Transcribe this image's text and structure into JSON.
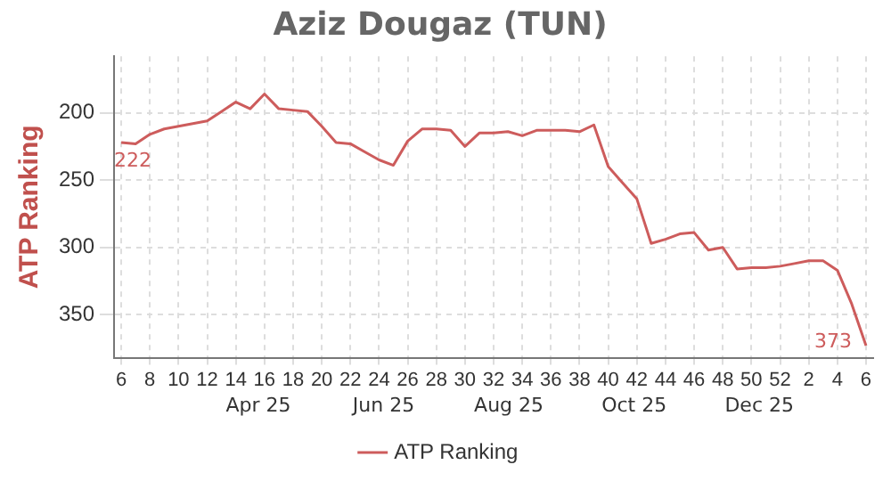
{
  "chart_data": {
    "type": "line",
    "title": "Aziz Dougaz (TUN)",
    "ylabel": "ATP Ranking",
    "categories": [
      "6",
      null,
      "8",
      null,
      "10",
      null,
      "12",
      null,
      "14",
      null,
      "16",
      null,
      "18",
      null,
      "20",
      null,
      "22",
      null,
      "24",
      null,
      "26",
      null,
      "28",
      null,
      "30",
      null,
      "32",
      null,
      "34",
      null,
      "36",
      null,
      "38",
      null,
      "40",
      null,
      "42",
      null,
      "44",
      null,
      "46",
      null,
      "48",
      null,
      "50",
      null,
      "52",
      null,
      "2",
      null,
      "4",
      null,
      "6"
    ],
    "series": [
      {
        "name": "ATP Ranking",
        "color": "#cd5c5c",
        "values": [
          222,
          223,
          216,
          212,
          210,
          208,
          206,
          199,
          192,
          197,
          186,
          197,
          198,
          199,
          210,
          222,
          223,
          229,
          235,
          239,
          221,
          212,
          212,
          213,
          225,
          215,
          215,
          214,
          217,
          213,
          213,
          213,
          214,
          209,
          240,
          252,
          264,
          297,
          294,
          290,
          289,
          302,
          300,
          316,
          315,
          315,
          314,
          312,
          310,
          310,
          317,
          342,
          373
        ],
        "value_labels": [
          "222",
          null,
          null,
          null,
          null,
          null,
          null,
          null,
          null,
          null,
          null,
          null,
          null,
          null,
          null,
          null,
          null,
          null,
          null,
          null,
          null,
          null,
          null,
          null,
          null,
          null,
          null,
          null,
          null,
          null,
          null,
          null,
          null,
          null,
          null,
          null,
          null,
          null,
          null,
          null,
          null,
          null,
          null,
          null,
          null,
          null,
          null,
          null,
          null,
          null,
          null,
          null,
          "373"
        ]
      }
    ],
    "annotations": [
      "Apr 25",
      "Jun 25",
      "Aug 25",
      "Oct 25",
      "Dec 25"
    ],
    "ylim": [
      382,
      158
    ],
    "yticks": [
      200,
      250,
      300,
      350
    ],
    "grid": true,
    "legend": "bottom",
    "marker": "none",
    "line_style": "solid"
  }
}
